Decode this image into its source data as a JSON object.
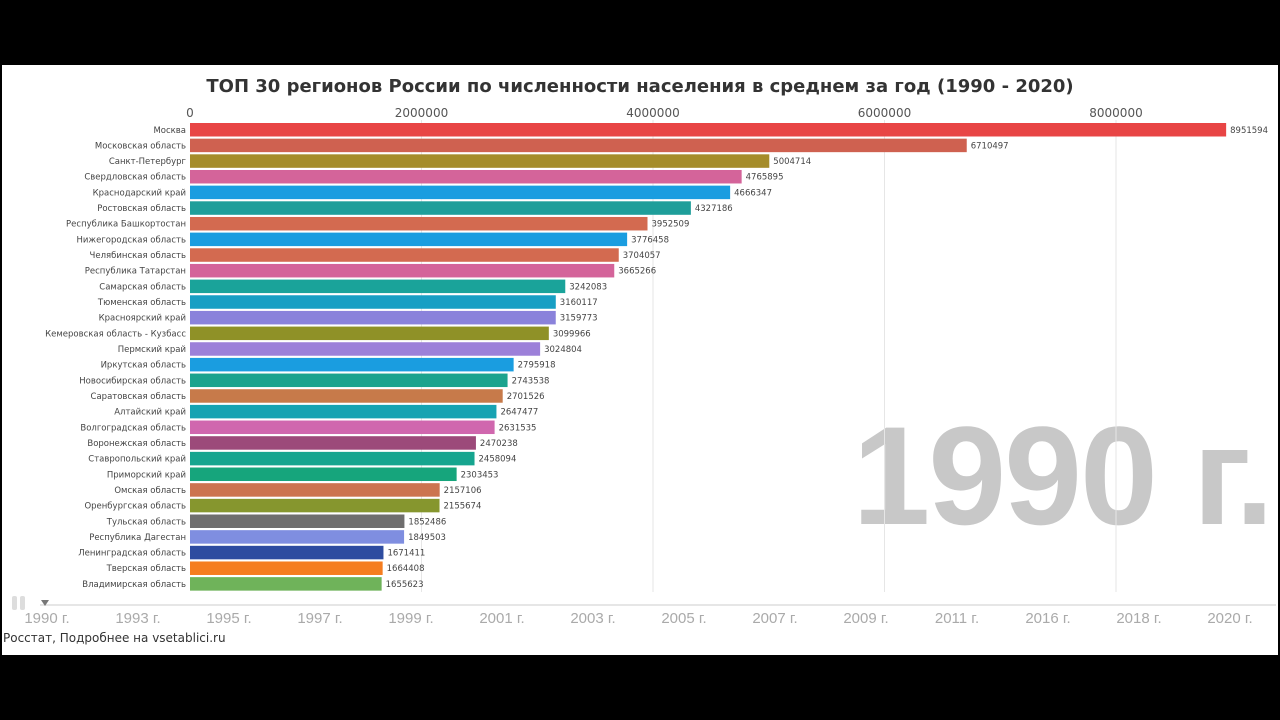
{
  "chart_data": {
    "type": "bar",
    "orientation": "horizontal",
    "title": "ТОП 30 регионов России по численности населения в среднем за год (1990 - 2020)",
    "current_year_label": "1990 г.",
    "xlim": [
      0,
      8951594
    ],
    "x_ticks": [
      0,
      2000000,
      4000000,
      6000000,
      8000000
    ],
    "grid": true,
    "categories": [
      "Москва",
      "Московская область",
      "Санкт-Петербург",
      "Свердловская область",
      "Краснодарский край",
      "Ростовская область",
      "Республика Башкортостан",
      "Нижегородская область",
      "Челябинская область",
      "Республика Татарстан",
      "Самарская область",
      "Тюменская область",
      "Красноярский край",
      "Кемеровская область - Кузбасс",
      "Пермский край",
      "Иркутская область",
      "Новосибирская область",
      "Саратовская область",
      "Алтайский край",
      "Волгоградская область",
      "Воронежская область",
      "Ставропольский край",
      "Приморский край",
      "Омская область",
      "Оренбургская область",
      "Тульская область",
      "Республика Дагестан",
      "Ленинградская область",
      "Тверская область",
      "Владимирская область"
    ],
    "values": [
      8951594,
      6710497,
      5004714,
      4765895,
      4666347,
      4327186,
      3952509,
      3776458,
      3704057,
      3665266,
      3242083,
      3160117,
      3159773,
      3099966,
      3024804,
      2795918,
      2743538,
      2701526,
      2647477,
      2631535,
      2470238,
      2458094,
      2303453,
      2157106,
      2155674,
      1852486,
      1849503,
      1671411,
      1664408,
      1655623
    ],
    "colors": [
      "#e84545",
      "#cf6150",
      "#a58c2a",
      "#d4649a",
      "#1a9de0",
      "#1e9e9a",
      "#d36a50",
      "#1a9de0",
      "#d36a50",
      "#d4649a",
      "#1aa39a",
      "#179fc4",
      "#8a82db",
      "#8f9127",
      "#9c80d9",
      "#1a9de0",
      "#1ba38e",
      "#c77a4a",
      "#17a3b2",
      "#d067ae",
      "#9c4a7a",
      "#16a58f",
      "#16a57c",
      "#cc744f",
      "#86962e",
      "#6f6e6e",
      "#7f8ee0",
      "#2e4ca0",
      "#f57d1f",
      "#6fb35a"
    ],
    "timeline": {
      "labels": [
        "1990 г.",
        "1993 г.",
        "1995 г.",
        "1997 г.",
        "1999 г.",
        "2001 г.",
        "2003 г.",
        "2005 г.",
        "2007 г.",
        "2009 г.",
        "2011 г.",
        "2016 г.",
        "2018 г.",
        "2020 г."
      ],
      "current": "1990 г."
    }
  },
  "source": "Росстат, Подробнее на vsetablici.ru",
  "controls": {
    "play_icon": "pause-icon"
  }
}
